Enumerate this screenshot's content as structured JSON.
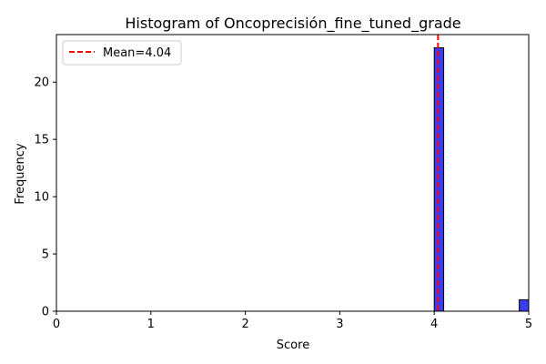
{
  "chart_data": {
    "type": "bar",
    "title": "Histogram of Oncoprecisión_fine_tuned_grade",
    "xlabel": "Score",
    "ylabel": "Frequency",
    "xlim": [
      0,
      5
    ],
    "ylim": [
      0,
      24.15
    ],
    "xticks": [
      0,
      1,
      2,
      3,
      4,
      5
    ],
    "yticks": [
      0,
      5,
      10,
      15,
      20
    ],
    "bins": [
      {
        "x0": 4.0,
        "x1": 4.1,
        "count": 23
      },
      {
        "x0": 4.9,
        "x1": 5.0,
        "count": 1
      }
    ],
    "mean": 4.04,
    "legend": {
      "position": "upper-left",
      "label": "Mean=4.04"
    },
    "colors": {
      "bar_fill": "#3b3bf2",
      "bar_edge": "#000000",
      "mean_line": "#ff0000"
    },
    "grid": false
  }
}
